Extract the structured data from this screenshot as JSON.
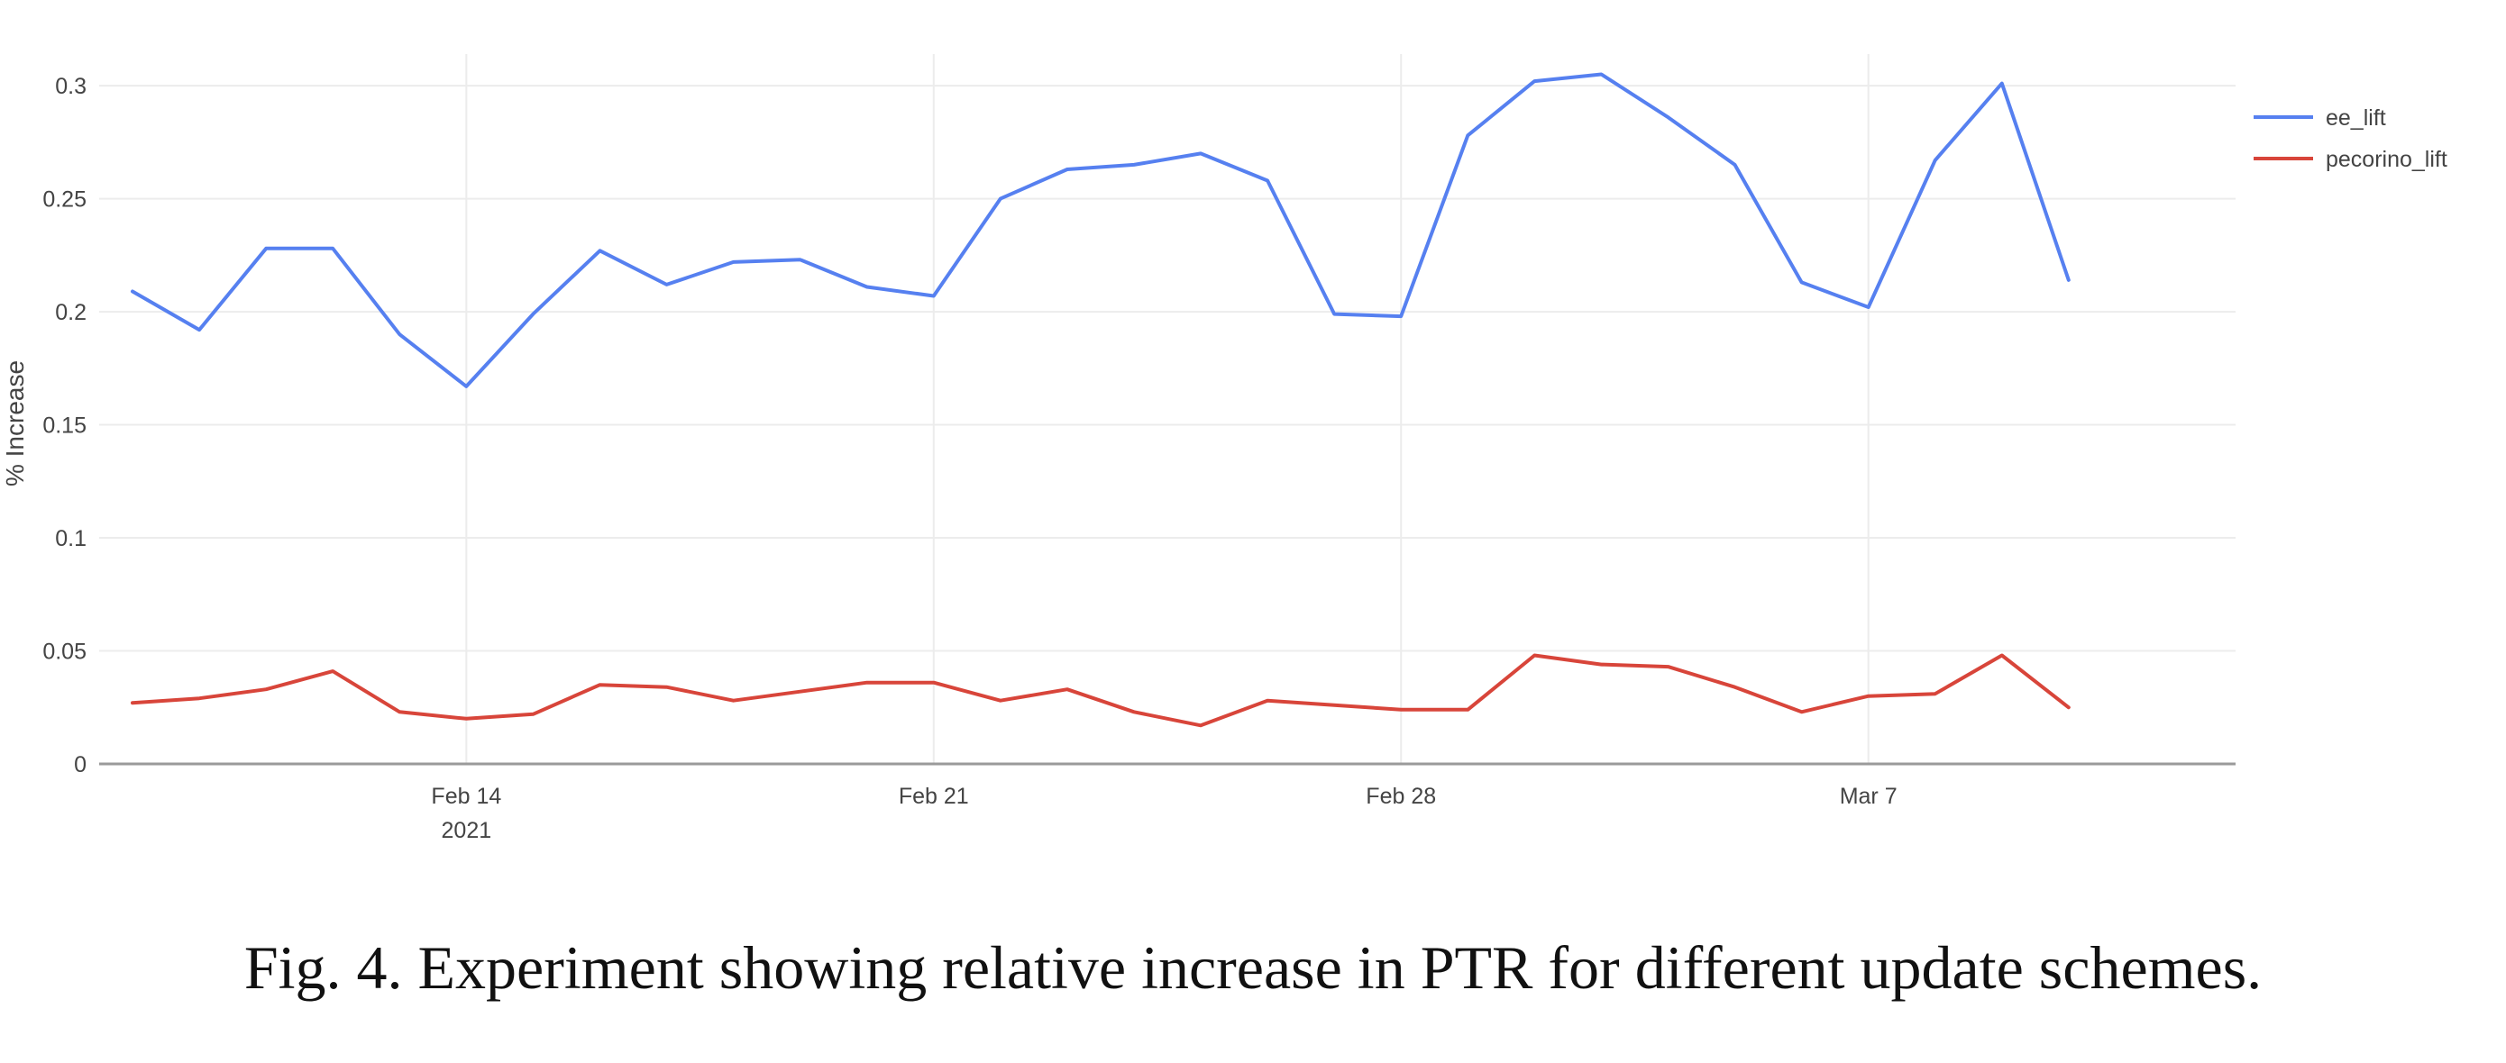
{
  "caption": "Fig. 4.  Experiment showing relative increase in PTR for different update schemes.",
  "colors": {
    "ee_lift": "#5680F0",
    "pecorino_lift": "#D8453A",
    "grid": "#ECECEC",
    "axis": "#9A9A9A",
    "text": "#444444"
  },
  "chart_data": {
    "type": "line",
    "title": "",
    "xlabel": "",
    "ylabel": "% Increase",
    "x": [
      "2021-02-09",
      "2021-02-10",
      "2021-02-11",
      "2021-02-12",
      "2021-02-13",
      "2021-02-14",
      "2021-02-15",
      "2021-02-16",
      "2021-02-17",
      "2021-02-18",
      "2021-02-19",
      "2021-02-20",
      "2021-02-21",
      "2021-02-22",
      "2021-02-23",
      "2021-02-24",
      "2021-02-25",
      "2021-02-26",
      "2021-02-27",
      "2021-02-28",
      "2021-03-01",
      "2021-03-02",
      "2021-03-03",
      "2021-03-04",
      "2021-03-05",
      "2021-03-06",
      "2021-03-07",
      "2021-03-08",
      "2021-03-09",
      "2021-03-10"
    ],
    "xlim": [
      "2021-02-08 12:00",
      "2021-03-12 12:00"
    ],
    "x_ticks": [
      {
        "date": "2021-02-14",
        "label": "Feb 14",
        "sublabel": "2021"
      },
      {
        "date": "2021-02-21",
        "label": "Feb 21",
        "sublabel": ""
      },
      {
        "date": "2021-02-28",
        "label": "Feb 28",
        "sublabel": ""
      },
      {
        "date": "2021-03-07",
        "label": "Mar 7",
        "sublabel": ""
      }
    ],
    "ylim": [
      0,
      0.31
    ],
    "y_ticks": [
      {
        "value": 0,
        "label": "0"
      },
      {
        "value": 0.05,
        "label": "0.05"
      },
      {
        "value": 0.1,
        "label": "0.1"
      },
      {
        "value": 0.15,
        "label": "0.15"
      },
      {
        "value": 0.2,
        "label": "0.2"
      },
      {
        "value": 0.25,
        "label": "0.25"
      },
      {
        "value": 0.3,
        "label": "0.3"
      }
    ],
    "grid": true,
    "legend_position": "top-right",
    "series": [
      {
        "name": "ee_lift",
        "color": "#5680F0",
        "values": [
          0.209,
          0.192,
          0.228,
          0.228,
          0.19,
          0.167,
          0.199,
          0.227,
          0.212,
          0.222,
          0.223,
          0.211,
          0.207,
          0.25,
          0.263,
          0.265,
          0.27,
          0.258,
          0.199,
          0.198,
          0.278,
          0.302,
          0.305,
          0.286,
          0.265,
          0.213,
          0.202,
          0.267,
          0.301,
          0.214
        ]
      },
      {
        "name": "pecorino_lift",
        "color": "#D8453A",
        "values": [
          0.027,
          0.029,
          0.033,
          0.041,
          0.023,
          0.02,
          0.022,
          0.035,
          0.034,
          0.028,
          0.032,
          0.036,
          0.036,
          0.028,
          0.033,
          0.023,
          0.017,
          0.028,
          0.026,
          0.024,
          0.024,
          0.048,
          0.044,
          0.043,
          0.034,
          0.023,
          0.03,
          0.031,
          0.048,
          0.025
        ]
      }
    ]
  }
}
